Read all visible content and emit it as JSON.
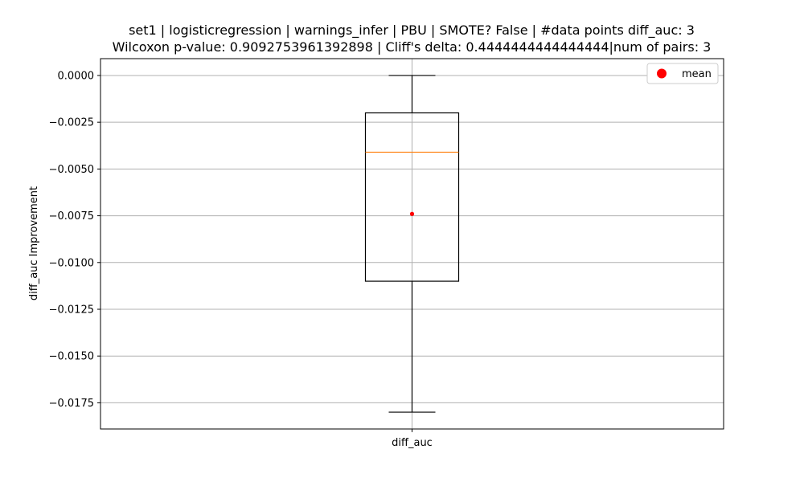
{
  "chart_data": {
    "type": "box",
    "title": [
      "set1 | logisticregression | warnings_infer | PBU | SMOTE? False | #data points diff_auc: 3",
      "Wilcoxon p-value: 0.9092753961392898 | Cliff's delta: 0.4444444444444444|num of pairs: 3"
    ],
    "xlabel": "",
    "ylabel": "diff_auc Improvement",
    "categories": [
      "diff_auc"
    ],
    "ylim": [
      -0.0189,
      0.0009
    ],
    "yticks": [
      0.0,
      -0.0025,
      -0.005,
      -0.0075,
      -0.01,
      -0.0125,
      -0.015,
      -0.0175
    ],
    "ytick_labels": [
      "0.0000",
      "−0.0025",
      "−0.0050",
      "−0.0075",
      "−0.0100",
      "−0.0125",
      "−0.0150",
      "−0.0175"
    ],
    "grid": true,
    "legend": {
      "position": "top-right",
      "entries": [
        {
          "label": "mean",
          "color": "#ff0000",
          "marker": "circle"
        }
      ]
    },
    "box": {
      "whisker_high": 0.0,
      "q3": -0.002,
      "median": -0.0041,
      "q1": -0.011,
      "whisker_low": -0.018,
      "mean": -0.0074
    },
    "colors": {
      "median": "#ff7f0e",
      "mean": "#ff0000",
      "box": "#000000",
      "grid": "#b0b0b0"
    }
  }
}
